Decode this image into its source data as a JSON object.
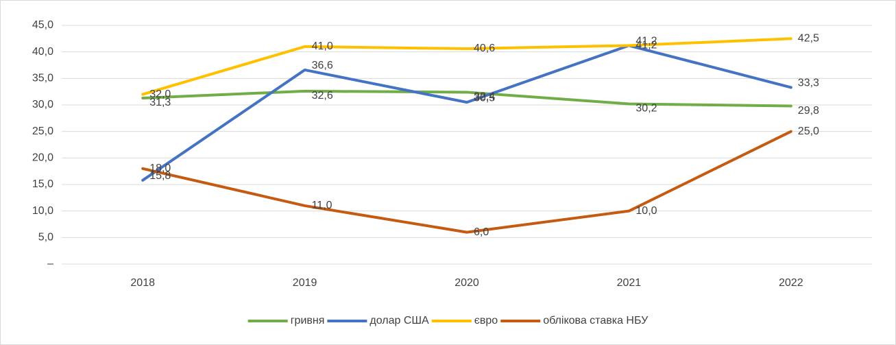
{
  "chart_data": {
    "type": "line",
    "categories": [
      "2018",
      "2019",
      "2020",
      "2021",
      "2022"
    ],
    "series": [
      {
        "name": "гривня",
        "color": "#70ad47",
        "values": [
          31.3,
          32.6,
          32.4,
          30.2,
          29.8
        ],
        "value_labels": [
          "31,3",
          "32,6",
          "32,4",
          "30,2",
          "29,8"
        ]
      },
      {
        "name": "долар США",
        "color": "#4472c4",
        "values": [
          15.8,
          36.6,
          30.5,
          41.2,
          33.3
        ],
        "value_labels": [
          "15,8",
          "36,6",
          "30,5",
          "41,2",
          "33,3"
        ]
      },
      {
        "name": "євро",
        "color": "#ffc000",
        "values": [
          32.0,
          41.0,
          40.6,
          41.2,
          42.5
        ],
        "value_labels": [
          "32,0",
          "41,0",
          "40,6",
          "41,2",
          "42,5"
        ]
      },
      {
        "name": "облікова ставка НБУ",
        "color": "#c55a11",
        "values": [
          18.0,
          11.0,
          6.0,
          10.0,
          25.0
        ],
        "value_labels": [
          "18,0",
          "11,0",
          "6,0",
          "10,0",
          "25,0"
        ]
      }
    ],
    "ylim": [
      0,
      45
    ],
    "yticks": [
      {
        "value": 0,
        "label": "–"
      },
      {
        "value": 5,
        "label": "5,0"
      },
      {
        "value": 10,
        "label": "10,0"
      },
      {
        "value": 15,
        "label": "15,0"
      },
      {
        "value": 20,
        "label": "20,0"
      },
      {
        "value": 25,
        "label": "25,0"
      },
      {
        "value": 30,
        "label": "30,0"
      },
      {
        "value": 35,
        "label": "35,0"
      },
      {
        "value": 40,
        "label": "40,0"
      },
      {
        "value": 45,
        "label": "45,0"
      }
    ],
    "grid": true,
    "legend": "bottom"
  }
}
